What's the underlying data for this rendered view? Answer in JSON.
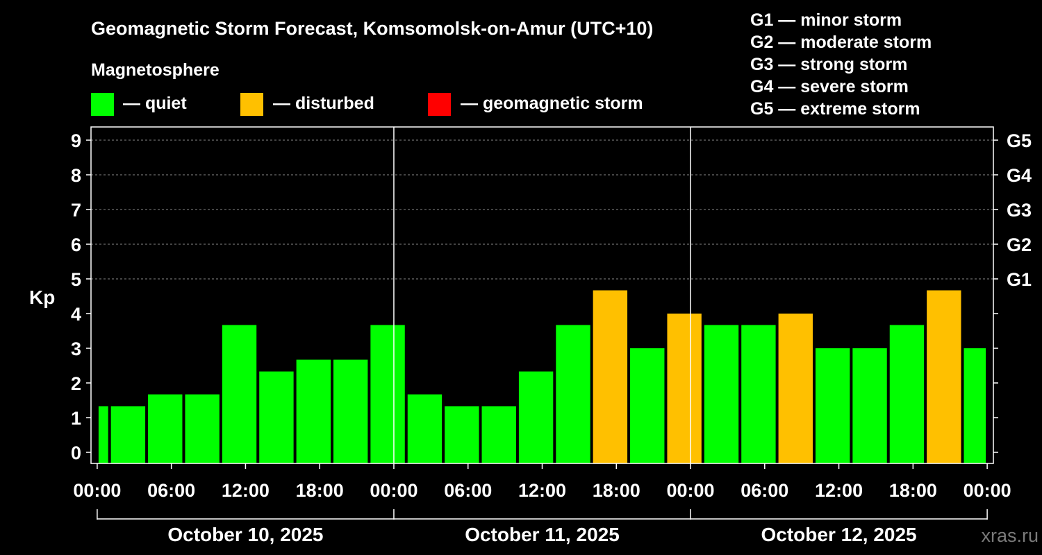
{
  "chart_data": {
    "type": "bar",
    "title": "Geomagnetic Storm Forecast, Komsomolsk-on-Amur (UTC+10)",
    "legend_title": "Magnetosphere",
    "legend": [
      {
        "label": "— quiet",
        "color": "#00ff00"
      },
      {
        "label": "— disturbed",
        "color": "#ffc000"
      },
      {
        "label": "— geomagnetic storm",
        "color": "#ff0000"
      }
    ],
    "storm_scale": [
      "G1 — minor storm",
      "G2 — moderate storm",
      "G3 — strong storm",
      "G4 — severe storm",
      "G5 — extreme storm"
    ],
    "ylabel": "Kp",
    "ylim": [
      0,
      9
    ],
    "yticks": [
      "0",
      "1",
      "2",
      "3",
      "4",
      "5",
      "6",
      "7",
      "8",
      "9"
    ],
    "right_ticks": [
      {
        "kp": 5,
        "label": "G1"
      },
      {
        "kp": 6,
        "label": "G2"
      },
      {
        "kp": 7,
        "label": "G3"
      },
      {
        "kp": 8,
        "label": "G4"
      },
      {
        "kp": 9,
        "label": "G5"
      }
    ],
    "x_range_hours": [
      -0.5,
      72.5
    ],
    "xticks": [
      {
        "hour": 0,
        "label": "00:00"
      },
      {
        "hour": 6,
        "label": "06:00"
      },
      {
        "hour": 12,
        "label": "12:00"
      },
      {
        "hour": 18,
        "label": "18:00"
      },
      {
        "hour": 24,
        "label": "00:00"
      },
      {
        "hour": 30,
        "label": "06:00"
      },
      {
        "hour": 36,
        "label": "12:00"
      },
      {
        "hour": 42,
        "label": "18:00"
      },
      {
        "hour": 48,
        "label": "00:00"
      },
      {
        "hour": 54,
        "label": "06:00"
      },
      {
        "hour": 60,
        "label": "12:00"
      },
      {
        "hour": 66,
        "label": "18:00"
      },
      {
        "hour": 72,
        "label": "00:00"
      }
    ],
    "days": [
      "October 10, 2025",
      "October 11, 2025",
      "October 12, 2025"
    ],
    "day_separators_hours": [
      24,
      48
    ],
    "bars": [
      {
        "start": 0,
        "end": 1,
        "kp": 1.33,
        "status": "quiet"
      },
      {
        "start": 1,
        "end": 4,
        "kp": 1.33,
        "status": "quiet"
      },
      {
        "start": 4,
        "end": 7,
        "kp": 1.67,
        "status": "quiet"
      },
      {
        "start": 7,
        "end": 10,
        "kp": 1.67,
        "status": "quiet"
      },
      {
        "start": 10,
        "end": 13,
        "kp": 3.67,
        "status": "quiet"
      },
      {
        "start": 13,
        "end": 16,
        "kp": 2.33,
        "status": "quiet"
      },
      {
        "start": 16,
        "end": 19,
        "kp": 2.67,
        "status": "quiet"
      },
      {
        "start": 19,
        "end": 22,
        "kp": 2.67,
        "status": "quiet"
      },
      {
        "start": 22,
        "end": 25,
        "kp": 3.67,
        "status": "quiet"
      },
      {
        "start": 25,
        "end": 28,
        "kp": 1.67,
        "status": "quiet"
      },
      {
        "start": 28,
        "end": 31,
        "kp": 1.33,
        "status": "quiet"
      },
      {
        "start": 31,
        "end": 34,
        "kp": 1.33,
        "status": "quiet"
      },
      {
        "start": 34,
        "end": 37,
        "kp": 2.33,
        "status": "quiet"
      },
      {
        "start": 37,
        "end": 40,
        "kp": 3.67,
        "status": "quiet"
      },
      {
        "start": 40,
        "end": 43,
        "kp": 4.67,
        "status": "disturbed"
      },
      {
        "start": 43,
        "end": 46,
        "kp": 3.0,
        "status": "quiet"
      },
      {
        "start": 46,
        "end": 49,
        "kp": 4.0,
        "status": "disturbed"
      },
      {
        "start": 49,
        "end": 52,
        "kp": 3.67,
        "status": "quiet"
      },
      {
        "start": 52,
        "end": 55,
        "kp": 3.67,
        "status": "quiet"
      },
      {
        "start": 55,
        "end": 58,
        "kp": 4.0,
        "status": "disturbed"
      },
      {
        "start": 58,
        "end": 61,
        "kp": 3.0,
        "status": "quiet"
      },
      {
        "start": 61,
        "end": 64,
        "kp": 3.0,
        "status": "quiet"
      },
      {
        "start": 64,
        "end": 67,
        "kp": 3.67,
        "status": "quiet"
      },
      {
        "start": 67,
        "end": 70,
        "kp": 4.67,
        "status": "disturbed"
      },
      {
        "start": 70,
        "end": 72,
        "kp": 3.0,
        "status": "quiet"
      }
    ],
    "colors": {
      "quiet": "#00ff00",
      "disturbed": "#ffc000",
      "storm": "#ff0000",
      "background": "#000000",
      "foreground": "#ffffff",
      "grid": "#888888"
    },
    "watermark": "xras.ru"
  }
}
